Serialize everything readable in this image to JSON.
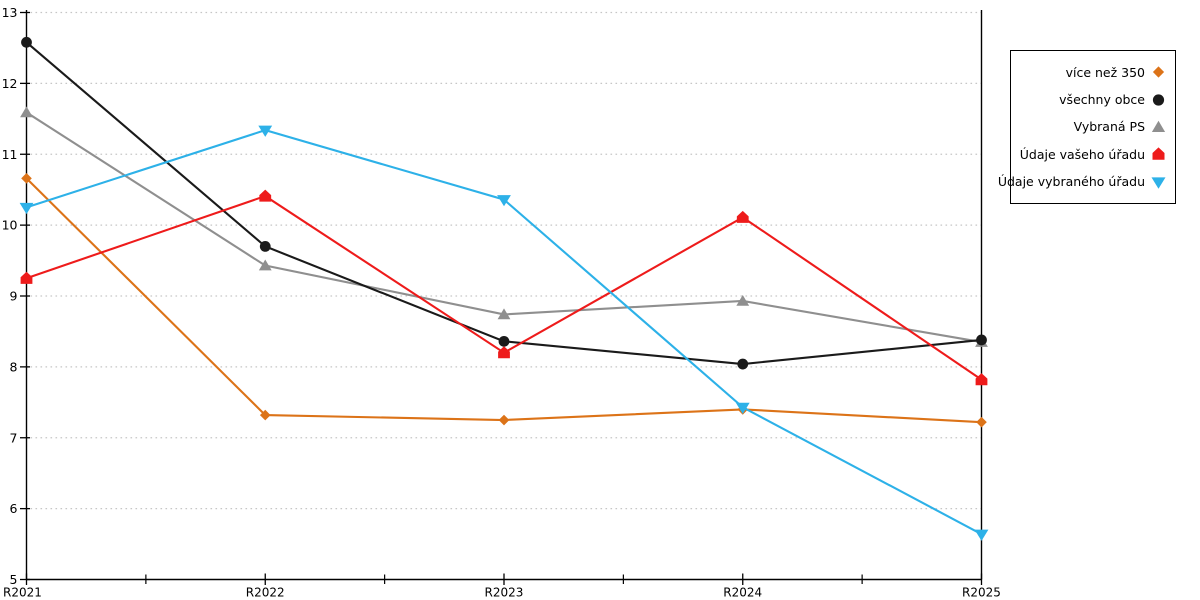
{
  "chart_data": {
    "type": "line",
    "x": [
      "R2021",
      "R2022",
      "R2023",
      "R2024",
      "R2025"
    ],
    "ylim": [
      5,
      13
    ],
    "y_tick_labels": [
      "5",
      "6",
      "7",
      "8",
      "9",
      "10",
      "11",
      "12",
      "13"
    ],
    "grid": "horizontal-dotted",
    "legend_position": "right-outside",
    "has_minor_x_ticks": true,
    "series": [
      {
        "name": "více než 350",
        "color": "#DC7318",
        "marker": "diamond",
        "values": [
          10.66,
          7.32,
          7.25,
          7.4,
          7.22
        ]
      },
      {
        "name": "všechny obce",
        "color": "#1A1A1A",
        "marker": "circle",
        "values": [
          12.58,
          9.7,
          8.36,
          8.04,
          8.38
        ]
      },
      {
        "name": "Vybraná PS",
        "color": "#8F8F8F",
        "marker": "triangle-up",
        "values": [
          11.59,
          9.43,
          8.74,
          8.93,
          8.35
        ]
      },
      {
        "name": "Údaje vašeho úřadu",
        "color": "#EE1B1B",
        "marker": "house",
        "values": [
          9.25,
          10.41,
          8.2,
          10.11,
          7.82
        ]
      },
      {
        "name": "Údaje vybraného úřadu",
        "color": "#2DB1E8",
        "marker": "triangle-down",
        "values": [
          10.25,
          11.34,
          10.36,
          7.43,
          5.64
        ]
      }
    ],
    "draw_order": [
      0,
      2,
      1,
      3,
      4
    ],
    "colors": {
      "axis": "#000000",
      "gridline": "#C6C6C6",
      "background": "#FFFFFF",
      "tick_label": "#000000",
      "legend_border": "#000000"
    }
  }
}
